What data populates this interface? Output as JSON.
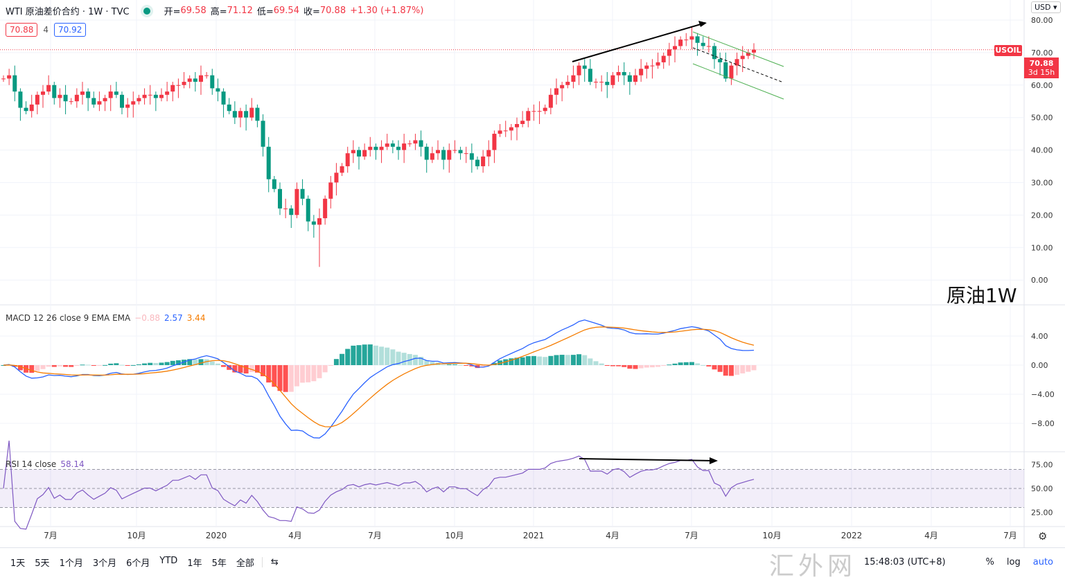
{
  "header": {
    "symbol": "WTI 原油差价合约 · 1W · TVC",
    "open_label": "开=",
    "open": "69.58",
    "high_label": "高=",
    "high": "71.12",
    "low_label": "低=",
    "low": "69.54",
    "close_label": "收=",
    "close": "70.88",
    "change": "+1.30 (+1.87%)",
    "bid": "70.88",
    "spread": "4",
    "ask": "70.92"
  },
  "price_axis": {
    "currency": "USD ▾",
    "symbol_tag": "USOIL",
    "last_price": "70.88",
    "countdown": "3d 15h"
  },
  "annotation": "原油1W",
  "macd": {
    "label": "MACD 12 26 close 9 EMA EMA",
    "hist": "−0.88",
    "macd": "2.57",
    "signal": "3.44"
  },
  "rsi": {
    "label": "RSI 14 close",
    "value": "58.14"
  },
  "timeframes": [
    "1天",
    "5天",
    "1个月",
    "3个月",
    "6个月",
    "YTD",
    "1年",
    "5年",
    "全部"
  ],
  "footer": {
    "time": "15:48:03 (UTC+8)",
    "percent": "%",
    "log": "log",
    "auto": "auto",
    "watermark": "汇外网"
  },
  "colors": {
    "up": "#f23645",
    "down": "#089981",
    "macd": "#2962ff",
    "signal": "#f57c00",
    "rsi": "#7e57c2"
  },
  "chart_data": {
    "type": "candlestick",
    "title": "WTI 原油差价合约 1W",
    "y_ticks": [
      "80.00",
      "70.00",
      "60.00",
      "50.00",
      "40.00",
      "30.00",
      "20.00",
      "10.00",
      "0.00"
    ],
    "macd_ticks": [
      "4.00",
      "0.00",
      "−4.00",
      "−8.00"
    ],
    "rsi_ticks": [
      "75.00",
      "50.00",
      "25.00"
    ],
    "x_ticks": [
      "7月",
      "10月",
      "2020",
      "4月",
      "7月",
      "10月",
      "2021",
      "4月",
      "7月",
      "10月",
      "2022",
      "4月",
      "7月"
    ],
    "ylim": [
      0,
      80
    ],
    "closes": [
      62,
      63,
      58,
      53,
      52,
      54,
      57,
      58,
      60,
      56,
      57,
      55,
      55,
      57,
      58,
      56,
      54,
      55,
      56,
      58,
      57,
      53,
      54,
      55,
      56,
      57,
      57,
      56,
      57,
      58,
      60,
      60,
      61,
      62,
      61,
      63,
      63,
      59,
      58,
      54,
      52,
      50,
      52,
      50,
      53,
      49,
      41,
      31,
      28,
      22,
      22,
      20,
      28,
      25,
      18,
      17,
      19,
      25,
      30,
      33,
      35,
      39,
      40,
      38,
      40,
      41,
      40,
      41,
      42,
      41,
      40,
      42,
      42,
      43,
      41,
      37,
      39,
      40,
      37,
      40,
      40,
      39,
      39,
      37,
      35,
      38,
      40,
      45,
      46,
      46,
      47,
      48,
      49,
      52,
      52,
      52,
      53,
      57,
      59,
      60,
      61,
      63,
      66,
      65,
      61,
      61,
      61,
      60,
      63,
      64,
      63,
      61,
      63,
      65,
      66,
      66,
      67,
      69,
      71,
      72,
      74,
      74,
      75,
      73,
      72,
      72,
      68,
      67,
      62,
      66,
      68,
      69,
      70,
      70.88
    ]
  }
}
